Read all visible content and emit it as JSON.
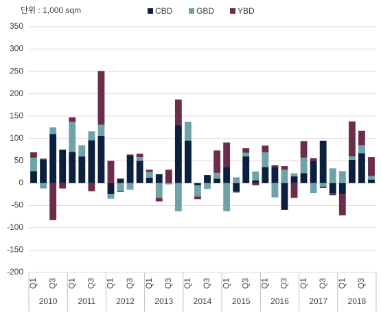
{
  "chart_data": {
    "type": "bar",
    "stacked": true,
    "unit_label": "단위 : 1,000 sqm",
    "categories": [
      "Q1",
      null,
      "Q3",
      null,
      "Q1",
      null,
      "Q3",
      null,
      "Q1",
      null,
      "Q3",
      null,
      "Q1",
      null,
      "Q3",
      null,
      "Q1",
      null,
      "Q3",
      null,
      "Q1",
      null,
      "Q3",
      null,
      "Q1",
      null,
      "Q3",
      null,
      "Q1",
      null,
      "Q3",
      null,
      "Q1",
      null,
      "Q3",
      null
    ],
    "groups": [
      "2010",
      "2011",
      "2012",
      "2013",
      "2014",
      "2015",
      "2016",
      "2017",
      "2018"
    ],
    "series": [
      {
        "name": "CBD",
        "color": "#0c1f3f",
        "values": [
          27,
          52,
          110,
          75,
          70,
          60,
          96,
          106,
          -25,
          10,
          62,
          50,
          12,
          20,
          0,
          130,
          95,
          -5,
          18,
          10,
          36,
          -18,
          60,
          6,
          36,
          35,
          -60,
          15,
          22,
          50,
          95,
          -22,
          -25,
          52,
          67,
          8
        ]
      },
      {
        "name": "GBD",
        "color": "#6fa3a8",
        "values": [
          30,
          -12,
          15,
          0,
          67,
          25,
          20,
          25,
          -10,
          -18,
          -15,
          8,
          13,
          -33,
          -3,
          -63,
          42,
          -25,
          -13,
          13,
          -63,
          13,
          8,
          20,
          33,
          -32,
          30,
          7,
          35,
          -22,
          -8,
          33,
          27,
          8,
          18,
          8
        ]
      },
      {
        "name": "YBD",
        "color": "#6b2d4a",
        "values": [
          12,
          3,
          -83,
          -12,
          10,
          0,
          -18,
          120,
          50,
          -2,
          2,
          8,
          5,
          -8,
          30,
          57,
          0,
          -6,
          0,
          50,
          55,
          -3,
          10,
          -5,
          15,
          5,
          8,
          -33,
          37,
          6,
          -3,
          -5,
          -47,
          78,
          32,
          42
        ]
      }
    ],
    "ylim": [
      -200,
      350
    ],
    "yticks": [
      -200,
      -150,
      -100,
      -50,
      0,
      50,
      100,
      150,
      200,
      250,
      300,
      350
    ],
    "grid": true
  }
}
